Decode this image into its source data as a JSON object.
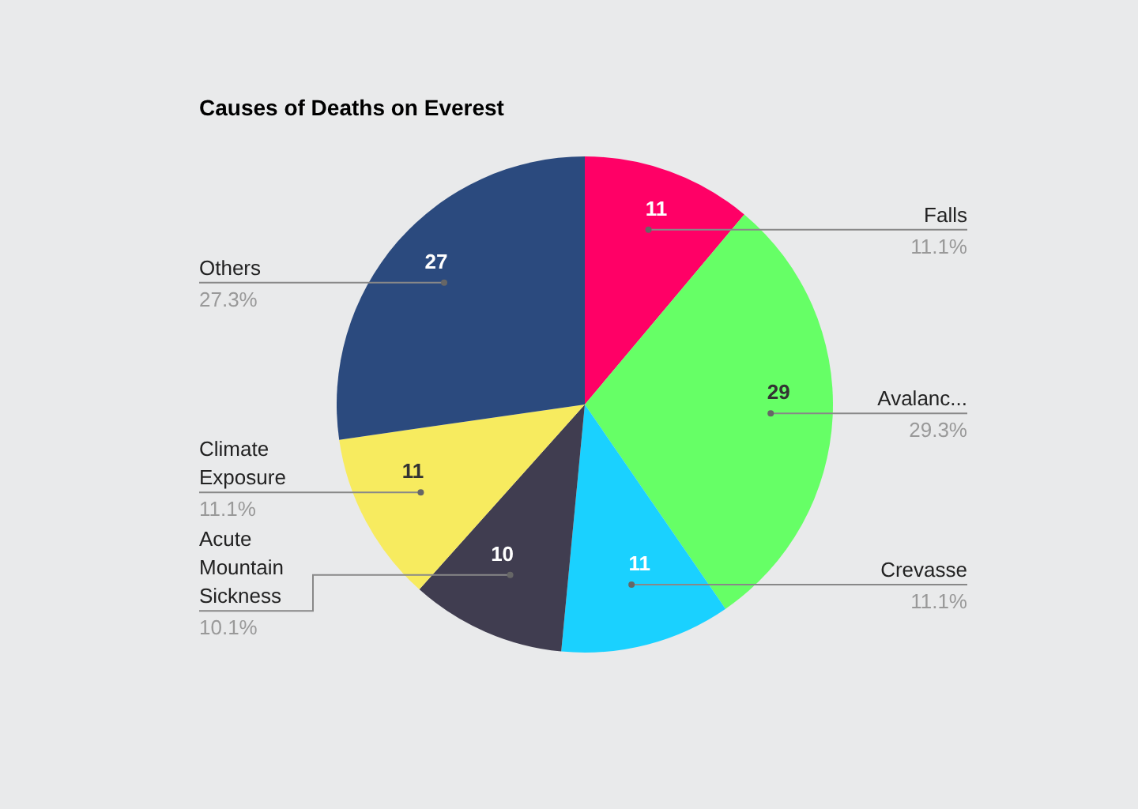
{
  "chart_data": {
    "type": "pie",
    "title": "Causes of Deaths on Everest",
    "categories": [
      "Falls",
      "Avalanc...",
      "Crevasse",
      "Acute Mountain Sickness",
      "Climate Exposure",
      "Others"
    ],
    "values": [
      11,
      29,
      11,
      10,
      11,
      27
    ],
    "annotations": [
      "11.1%",
      "29.3%",
      "11.1%",
      "10.1%",
      "11.1%",
      "27.3%"
    ],
    "colors": [
      "#ff0066",
      "#66ff66",
      "#1ad1ff",
      "#403d50",
      "#f7eb5f",
      "#2b4a7e"
    ],
    "data_labels": true
  }
}
